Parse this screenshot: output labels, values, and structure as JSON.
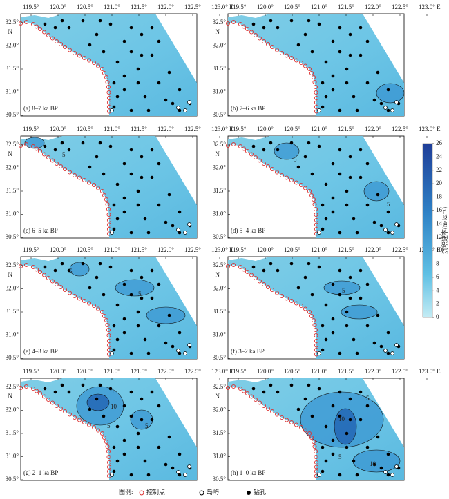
{
  "map_axes": {
    "lon_ticks": [
      {
        "value": 119.5,
        "label": "119.5°"
      },
      {
        "value": 120.0,
        "label": "120.0°"
      },
      {
        "value": 120.5,
        "label": "120.5°"
      },
      {
        "value": 121.0,
        "label": "121.0°"
      },
      {
        "value": 121.5,
        "label": "121.5°"
      },
      {
        "value": 122.0,
        "label": "122.0°"
      },
      {
        "value": 122.5,
        "label": "122.5°"
      },
      {
        "value": 123.0,
        "label": "123.0° E"
      }
    ],
    "lat_ticks": [
      {
        "value": 32.5,
        "label": "32.5°"
      },
      {
        "value": 32.0,
        "label": "32.0°"
      },
      {
        "value": 31.5,
        "label": "31.5°"
      },
      {
        "value": 31.0,
        "label": "31.0°"
      },
      {
        "value": 30.5,
        "label": "30.5°"
      }
    ],
    "lat_unit": "N"
  },
  "panels": [
    {
      "label": "(a) 8–7 ka BP",
      "contour_labels": []
    },
    {
      "label": "(b) 7–6 ka BP",
      "contour_labels": []
    },
    {
      "label": "(c) 6–5 ka BP",
      "contour_labels": [
        "5"
      ]
    },
    {
      "label": "(d) 5–4 ka BP",
      "contour_labels": [
        "5",
        "5"
      ]
    },
    {
      "label": "(e) 4–3 ka BP",
      "contour_labels": [
        "5",
        "5"
      ]
    },
    {
      "label": "(f) 3–2 ka BP",
      "contour_labels": [
        "5"
      ]
    },
    {
      "label": "(g) 2–1 ka BP",
      "contour_labels": [
        "5",
        "10",
        "5",
        "5"
      ]
    },
    {
      "label": "(h) 1–0 ka BP",
      "contour_labels": [
        "5",
        "10",
        "5",
        "10"
      ]
    }
  ],
  "colorbar": {
    "title": "沉积速率(m·ka⁻¹)",
    "lim": [
      0,
      26
    ],
    "ticks": [
      0,
      2,
      4,
      6,
      8,
      10,
      12,
      14,
      16,
      18,
      20,
      22,
      24,
      26
    ]
  },
  "legend": {
    "title": "图例:",
    "items": [
      "控制点",
      "岛屿",
      "钻孔"
    ]
  }
}
